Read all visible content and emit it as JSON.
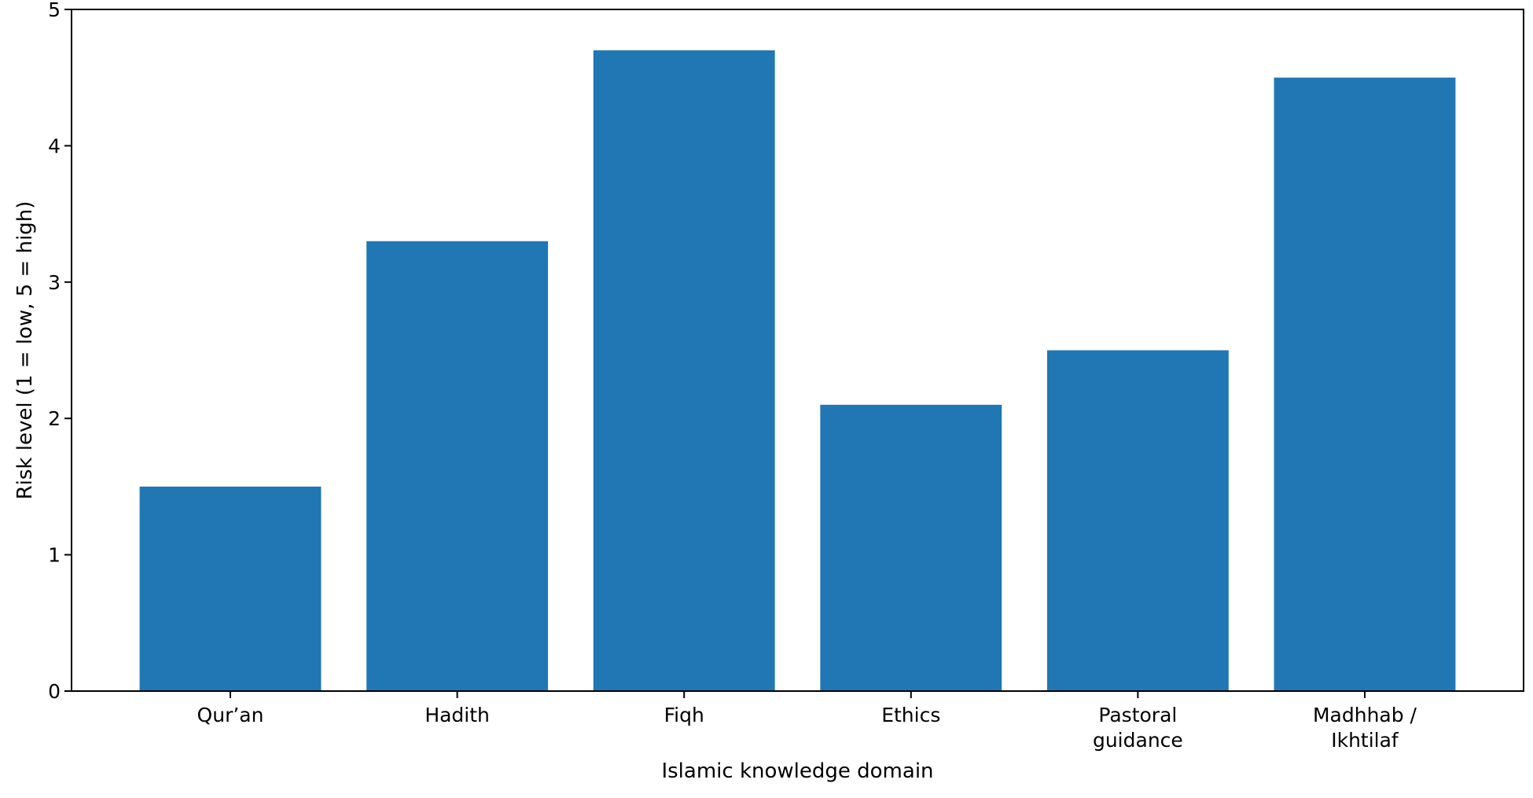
{
  "chart_data": {
    "type": "bar",
    "title": "",
    "xlabel": "Islamic knowledge domain",
    "ylabel": "Risk level (1 = low, 5 = high)",
    "categories": [
      "Qur’an",
      "Hadith",
      "Fiqh",
      "Ethics",
      "Pastoral guidance",
      "Madhhab / Ikhtilaf"
    ],
    "category_lines": [
      [
        "Qur’an"
      ],
      [
        "Hadith"
      ],
      [
        "Fiqh"
      ],
      [
        "Ethics"
      ],
      [
        "Pastoral",
        "guidance"
      ],
      [
        "Madhhab /",
        "Ikhtilaf"
      ]
    ],
    "values": [
      1.5,
      3.3,
      4.7,
      2.1,
      2.5,
      4.5
    ],
    "ylim": [
      0,
      5
    ],
    "yticks": [
      "0",
      "1",
      "2",
      "3",
      "4",
      "5"
    ],
    "grid": false,
    "colors": {
      "bar": "#2077b4",
      "axis": "#000000",
      "background": "#ffffff"
    }
  }
}
